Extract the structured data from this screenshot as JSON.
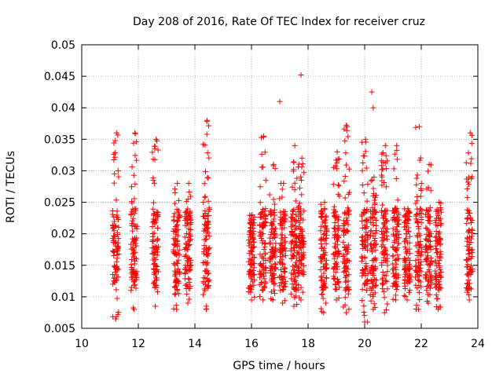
{
  "chart_data": {
    "type": "scatter",
    "title": "Day 208 of 2016, Rate Of TEC Index for receiver cruz",
    "xlabel": "GPS time / hours",
    "ylabel": "ROTI / TECUs",
    "xlim": [
      10,
      24
    ],
    "ylim": [
      0.005,
      0.05
    ],
    "xticks": [
      10,
      12,
      14,
      16,
      18,
      20,
      22,
      24
    ],
    "xtick_labels": [
      "10",
      "12",
      "14",
      "16",
      "18",
      "20",
      "22",
      "24"
    ],
    "yticks": [
      0.005,
      0.01,
      0.015,
      0.02,
      0.025,
      0.03,
      0.035,
      0.04,
      0.045,
      0.05
    ],
    "ytick_labels": [
      "0.005",
      "0.01",
      "0.015",
      "0.02",
      "0.025",
      "0.03",
      "0.035",
      "0.04",
      "0.045",
      "0.05"
    ],
    "grid": true,
    "marker": "+",
    "marker_color": "#ff0000",
    "series": [
      {
        "name": "ROTI",
        "clusters": [
          {
            "x": 11.2,
            "ymin": 0.0065,
            "ymax": 0.036
          },
          {
            "x": 11.85,
            "ymin": 0.008,
            "ymax": 0.036
          },
          {
            "x": 12.6,
            "ymin": 0.0085,
            "ymax": 0.035
          },
          {
            "x": 13.35,
            "ymin": 0.008,
            "ymax": 0.028
          },
          {
            "x": 13.75,
            "ymin": 0.009,
            "ymax": 0.028
          },
          {
            "x": 14.4,
            "ymin": 0.008,
            "ymax": 0.038
          },
          {
            "x": 16.0,
            "ymin": 0.0095,
            "ymax": 0.023
          },
          {
            "x": 16.4,
            "ymin": 0.0095,
            "ymax": 0.0355
          },
          {
            "x": 16.75,
            "ymin": 0.0095,
            "ymax": 0.031
          },
          {
            "x": 17.1,
            "ymin": 0.009,
            "ymax": 0.028
          },
          {
            "x": 17.5,
            "ymin": 0.0085,
            "ymax": 0.034
          },
          {
            "x": 17.75,
            "ymin": 0.0095,
            "ymax": 0.032
          },
          {
            "x": 18.55,
            "ymin": 0.0075,
            "ymax": 0.025
          },
          {
            "x": 19.0,
            "ymin": 0.0095,
            "ymax": 0.033
          },
          {
            "x": 19.35,
            "ymin": 0.0075,
            "ymax": 0.037
          },
          {
            "x": 20.0,
            "ymin": 0.006,
            "ymax": 0.035
          },
          {
            "x": 20.3,
            "ymin": 0.008,
            "ymax": 0.029
          },
          {
            "x": 20.7,
            "ymin": 0.0075,
            "ymax": 0.034
          },
          {
            "x": 21.1,
            "ymin": 0.0095,
            "ymax": 0.034
          },
          {
            "x": 21.5,
            "ymin": 0.0095,
            "ymax": 0.024
          },
          {
            "x": 21.9,
            "ymin": 0.008,
            "ymax": 0.037
          },
          {
            "x": 22.25,
            "ymin": 0.009,
            "ymax": 0.031
          },
          {
            "x": 22.6,
            "ymin": 0.008,
            "ymax": 0.025
          },
          {
            "x": 23.7,
            "ymin": 0.0095,
            "ymax": 0.036
          }
        ],
        "outliers": [
          {
            "x": 17.75,
            "y": 0.0452
          },
          {
            "x": 17.0,
            "y": 0.041
          },
          {
            "x": 20.25,
            "y": 0.0425
          },
          {
            "x": 20.3,
            "y": 0.04
          },
          {
            "x": 19.35,
            "y": 0.0372
          },
          {
            "x": 11.2,
            "y": 0.0065
          },
          {
            "x": 20.1,
            "y": 0.006
          }
        ]
      }
    ]
  }
}
